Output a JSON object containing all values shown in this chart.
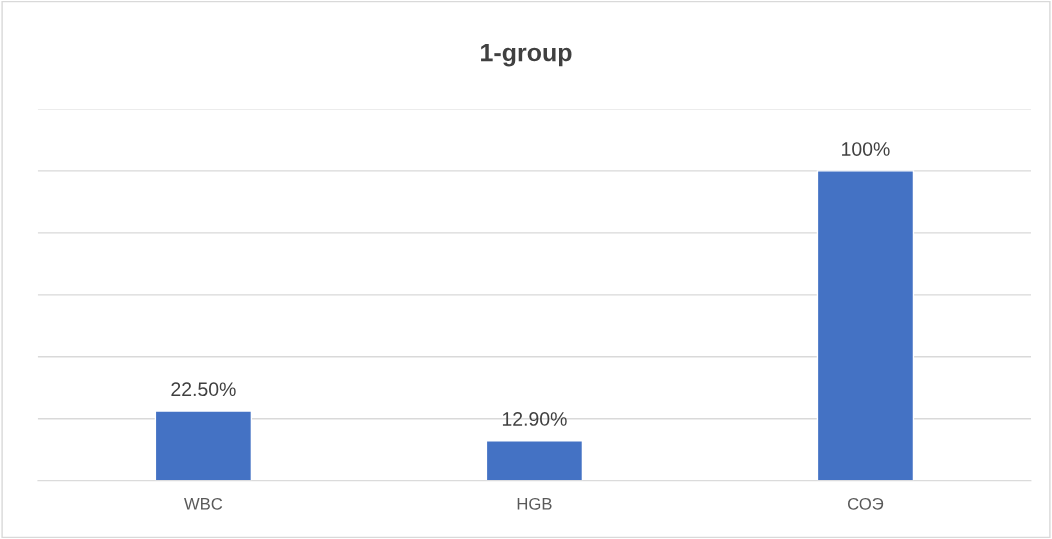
{
  "chart_data": {
    "type": "bar",
    "title": "1-group",
    "categories": [
      "WBC",
      "HGB",
      "СОЭ"
    ],
    "values": [
      22.5,
      12.9,
      100
    ],
    "color": "#4472c4",
    "value_labels": [
      "22.50%",
      "12.90%",
      "100%"
    ],
    "ylim": [
      0,
      120
    ],
    "yticks": [
      {
        "value": 0,
        "label": null
      },
      {
        "value": 20,
        "label": null
      },
      {
        "value": 40,
        "label": null
      },
      {
        "value": 60,
        "label": null
      },
      {
        "value": 80,
        "label": null
      },
      {
        "value": 100,
        "label": null
      },
      {
        "value": 120,
        "label": null
      }
    ],
    "grid": "y",
    "tick_labels": "x"
  }
}
